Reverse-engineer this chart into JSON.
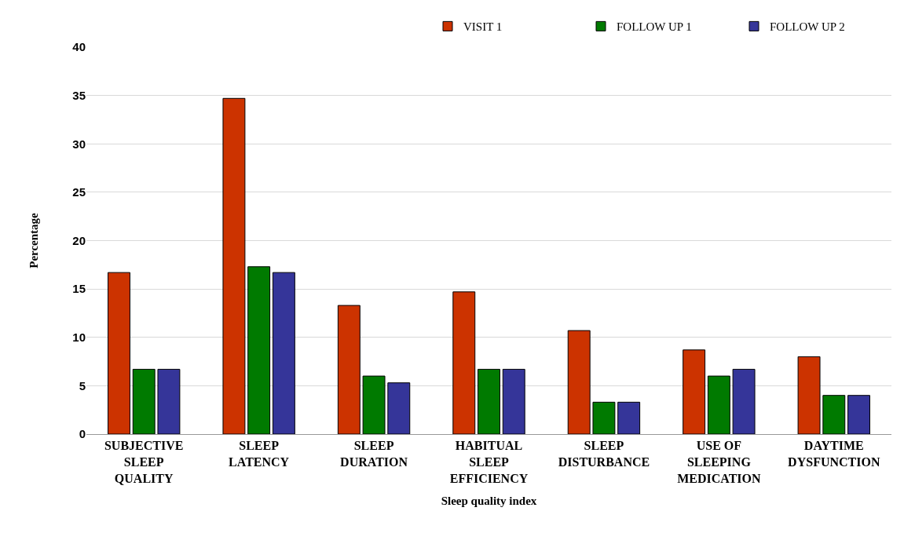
{
  "chart_data": {
    "type": "bar",
    "xlabel": "Sleep quality index",
    "ylabel": "Percentage",
    "categories": [
      "SUBJECTIVE SLEEP QUALITY",
      "SLEEP LATENCY",
      "SLEEP DURATION",
      "HABITUAL SLEEP EFFICIENCY",
      "SLEEP DISTURBANCE",
      "USE OF SLEEPING MEDICATION",
      "DAYTIME DYSFUNCTION"
    ],
    "series": [
      {
        "name": "VISIT 1",
        "color": "#cc3300",
        "values": [
          16.7,
          34.7,
          13.3,
          14.7,
          10.7,
          8.7,
          8.0
        ]
      },
      {
        "name": "FOLLOW UP 1",
        "color": "#007a00",
        "values": [
          6.7,
          17.3,
          6.0,
          6.7,
          3.3,
          6.0,
          4.0
        ]
      },
      {
        "name": "FOLLOW UP 2",
        "color": "#353599",
        "values": [
          6.7,
          16.7,
          5.3,
          6.7,
          3.3,
          6.7,
          4.0
        ]
      }
    ],
    "ylim": [
      0,
      40
    ],
    "yticks": [
      0,
      5,
      10,
      15,
      20,
      25,
      30,
      35,
      40
    ],
    "grid": "y",
    "legend": "top right"
  }
}
